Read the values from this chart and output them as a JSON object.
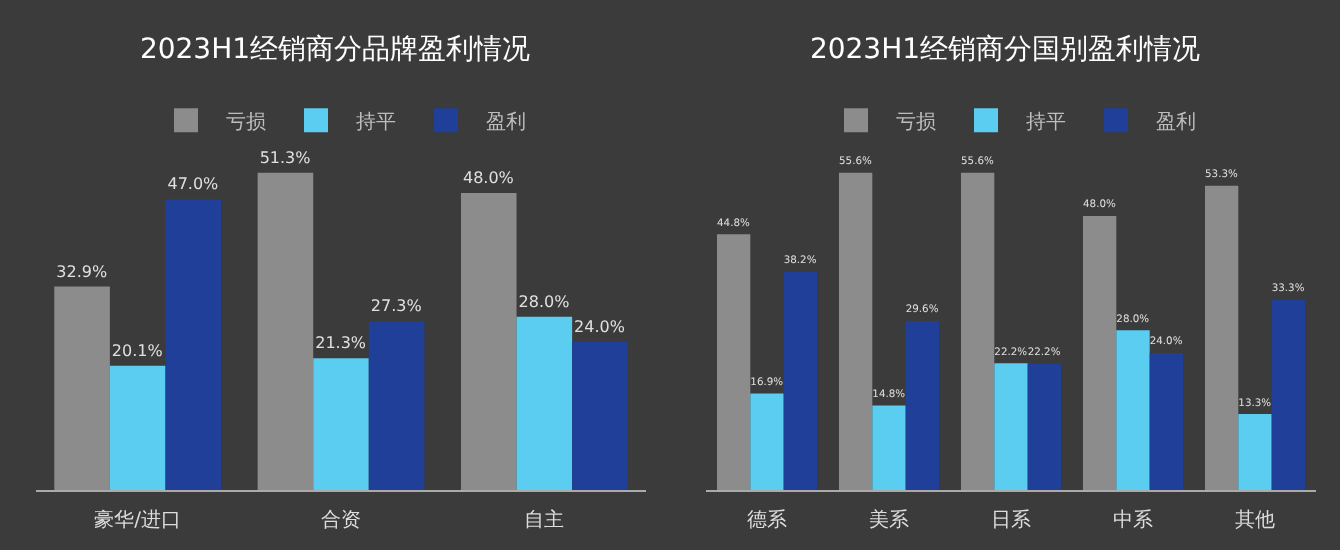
{
  "chart_data": [
    {
      "type": "bar",
      "title": "2023H1经销商分品牌盈利情况",
      "categories": [
        "豪华/进口",
        "合资",
        "自主"
      ],
      "legend": "top",
      "tick_labels": "x",
      "series": [
        {
          "name": "亏损",
          "color": "#8c8c8c",
          "values": [
            32.9,
            51.3,
            48.0
          ],
          "value_labels": [
            "32.9%",
            "51.3%",
            "48.0%"
          ]
        },
        {
          "name": "持平",
          "color": "#5bcdf0",
          "values": [
            20.1,
            21.3,
            28.0
          ],
          "value_labels": [
            "20.1%",
            "21.3%",
            "28.0%"
          ]
        },
        {
          "name": "盈利",
          "color": "#1f3f99",
          "values": [
            47.0,
            27.3,
            24.0
          ],
          "value_labels": [
            "47.0%",
            "27.3%",
            "24.0%"
          ]
        }
      ]
    },
    {
      "type": "bar",
      "title": "2023H1经销商分国别盈利情况",
      "categories": [
        "德系",
        "美系",
        "日系",
        "中系",
        "其他"
      ],
      "legend": "top",
      "tick_labels": "x",
      "series": [
        {
          "name": "亏损",
          "color": "#8c8c8c",
          "values": [
            44.8,
            55.6,
            55.6,
            48.0,
            53.3
          ],
          "value_labels": [
            "44.8%",
            "55.6%",
            "55.6%",
            "48.0%",
            "53.3%"
          ]
        },
        {
          "name": "持平",
          "color": "#5bcdf0",
          "values": [
            16.9,
            14.8,
            22.2,
            28.0,
            13.3
          ],
          "value_labels": [
            "16.9%",
            "14.8%",
            "22.2%",
            "28.0%",
            "13.3%"
          ]
        },
        {
          "name": "盈利",
          "color": "#1f3f99",
          "values": [
            38.2,
            29.6,
            22.2,
            24.0,
            33.3
          ],
          "value_labels": [
            "38.2%",
            "29.6%",
            "22.2%",
            "24.0%",
            "33.3%"
          ]
        }
      ]
    }
  ]
}
